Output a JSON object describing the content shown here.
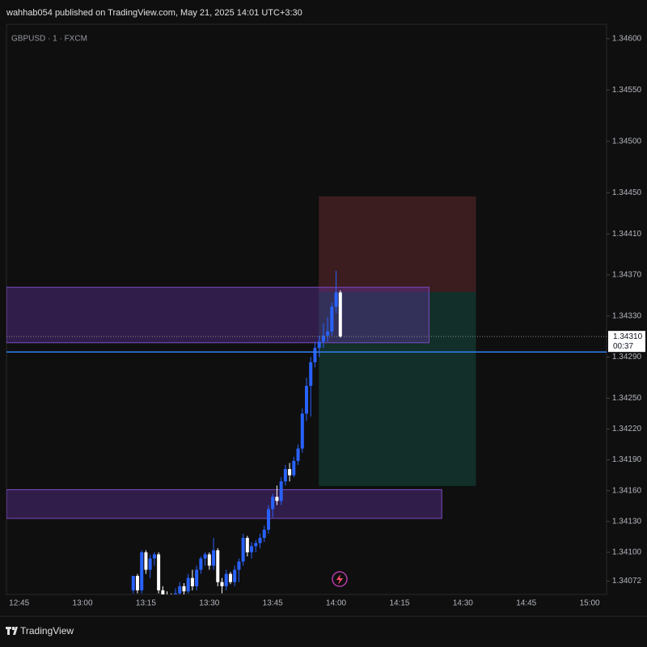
{
  "header": {
    "published": "wahhab054 published on TradingView.com, May 21, 2025 14:01 UTC+3:30"
  },
  "footer": {
    "brand": "TradingView"
  },
  "chart_data": {
    "type": "candlestick",
    "symbol": "GBPUSD · 1 · FXCM",
    "up_color": "#2962ff",
    "down_color": "#ffffff",
    "xlim": [
      "12:42",
      "15:04"
    ],
    "xticks": [
      "12:45",
      "13:00",
      "13:15",
      "13:30",
      "13:45",
      "14:00",
      "14:15",
      "14:30",
      "14:45",
      "15:00"
    ],
    "ylim": [
      1.34059,
      1.34614
    ],
    "yticks": [
      {
        "value": 1.346,
        "label": "1.34600"
      },
      {
        "value": 1.3455,
        "label": "1.34550"
      },
      {
        "value": 1.345,
        "label": "1.34500"
      },
      {
        "value": 1.3445,
        "label": "1.34450"
      },
      {
        "value": 1.3441,
        "label": "1.34410"
      },
      {
        "value": 1.3437,
        "label": "1.34370"
      },
      {
        "value": 1.3433,
        "label": "1.34330"
      },
      {
        "value": 1.3429,
        "label": "1.34290"
      },
      {
        "value": 1.3425,
        "label": "1.34250"
      },
      {
        "value": 1.3422,
        "label": "1.34220"
      },
      {
        "value": 1.3419,
        "label": "1.34190"
      },
      {
        "value": 1.3416,
        "label": "1.34160"
      },
      {
        "value": 1.3413,
        "label": "1.34130"
      },
      {
        "value": 1.341,
        "label": "1.34100"
      },
      {
        "value": 1.34072,
        "label": "1.34072"
      }
    ],
    "x": [
      "13:12",
      "13:13",
      "13:14",
      "13:15",
      "13:16",
      "13:17",
      "13:18",
      "13:19",
      "13:20",
      "13:21",
      "13:22",
      "13:23",
      "13:24",
      "13:25",
      "13:26",
      "13:27",
      "13:28",
      "13:29",
      "13:30",
      "13:31",
      "13:32",
      "13:33",
      "13:34",
      "13:35",
      "13:36",
      "13:37",
      "13:38",
      "13:39",
      "13:40",
      "13:41",
      "13:42",
      "13:43",
      "13:44",
      "13:45",
      "13:46",
      "13:47",
      "13:48",
      "13:49",
      "13:50",
      "13:51",
      "13:52",
      "13:53",
      "13:54",
      "13:55",
      "13:56",
      "13:57",
      "13:58",
      "13:59",
      "14:00",
      "14:01"
    ],
    "open": [
      1.34063,
      1.34077,
      1.34063,
      1.341,
      1.34083,
      1.34094,
      1.34098,
      1.34063,
      1.34058,
      1.34055,
      1.34052,
      1.3406,
      1.34067,
      1.34062,
      1.34075,
      1.34067,
      1.34083,
      1.34094,
      1.34098,
      1.34087,
      1.34102,
      1.34071,
      1.34067,
      1.34079,
      1.34071,
      1.34083,
      1.34091,
      1.34114,
      1.341,
      1.34106,
      1.34109,
      1.34114,
      1.34122,
      1.34142,
      1.34154,
      1.3415,
      1.34169,
      1.34181,
      1.34175,
      1.34189,
      1.34201,
      1.34235,
      1.34262,
      1.34285,
      1.34299,
      1.34305,
      1.34311,
      1.34315,
      1.34339,
      1.34353
    ],
    "high": [
      1.34077,
      1.34079,
      1.34102,
      1.34102,
      1.34098,
      1.341,
      1.341,
      1.34067,
      1.34062,
      1.3406,
      1.34065,
      1.34071,
      1.3407,
      1.34079,
      1.34083,
      1.34087,
      1.34096,
      1.341,
      1.341,
      1.34114,
      1.34104,
      1.34075,
      1.34083,
      1.34081,
      1.34087,
      1.34094,
      1.34118,
      1.34116,
      1.3411,
      1.34112,
      1.34118,
      1.34126,
      1.34146,
      1.34157,
      1.34165,
      1.34173,
      1.34185,
      1.34187,
      1.34193,
      1.34205,
      1.3424,
      1.3427,
      1.3429,
      1.34305,
      1.34311,
      1.34323,
      1.34329,
      1.34343,
      1.34374,
      1.34355
    ],
    "low": [
      1.3406,
      1.3406,
      1.3406,
      1.34079,
      1.34075,
      1.34087,
      1.3406,
      1.34055,
      1.3405,
      1.34048,
      1.3405,
      1.34055,
      1.34058,
      1.3406,
      1.34063,
      1.34063,
      1.34079,
      1.34087,
      1.34083,
      1.34083,
      1.34067,
      1.3406,
      1.34063,
      1.34069,
      1.34067,
      1.34071,
      1.34087,
      1.34096,
      1.34094,
      1.341,
      1.34104,
      1.3411,
      1.34118,
      1.34134,
      1.34146,
      1.34146,
      1.34165,
      1.34169,
      1.34173,
      1.34185,
      1.34197,
      1.34228,
      1.34232,
      1.3428,
      1.3429,
      1.34299,
      1.34305,
      1.34311,
      1.34333,
      1.34309
    ],
    "close": [
      1.34077,
      1.34063,
      1.341,
      1.34083,
      1.34094,
      1.34098,
      1.34063,
      1.34058,
      1.34055,
      1.34052,
      1.3406,
      1.34067,
      1.34062,
      1.34075,
      1.34067,
      1.34083,
      1.34094,
      1.34098,
      1.34087,
      1.34102,
      1.34071,
      1.34067,
      1.34079,
      1.34071,
      1.34083,
      1.34091,
      1.34114,
      1.341,
      1.34106,
      1.34109,
      1.34114,
      1.34122,
      1.34142,
      1.34154,
      1.3415,
      1.34169,
      1.34181,
      1.34175,
      1.34189,
      1.34201,
      1.34235,
      1.34262,
      1.34285,
      1.34299,
      1.34305,
      1.34311,
      1.34315,
      1.34339,
      1.34353,
      1.3431
    ],
    "zones": [
      {
        "x": [
          "13:56",
          "14:33"
        ],
        "top": 1.34446,
        "bottom": 1.34353,
        "color": "#3b1d20",
        "border": "#3b1d20"
      },
      {
        "x": [
          "13:56",
          "14:33"
        ],
        "top": 1.34353,
        "bottom": 1.34165,
        "color": "#122f29",
        "border": "#122f29"
      },
      {
        "x": [
          "12:42",
          "14:22"
        ],
        "top": 1.34358,
        "bottom": 1.34304,
        "color": "rgba(104,52,170,0.38)",
        "border": "#7b4bc0"
      },
      {
        "x": [
          "12:42",
          "14:25"
        ],
        "top": 1.34161,
        "bottom": 1.34133,
        "color": "rgba(104,52,170,0.38)",
        "border": "#7b4bc0"
      }
    ],
    "hline": {
      "value": 1.34295,
      "color": "#2f7ff5"
    },
    "last_price": {
      "value": 1.3431,
      "label": "1.34310",
      "countdown": "00:37"
    }
  }
}
